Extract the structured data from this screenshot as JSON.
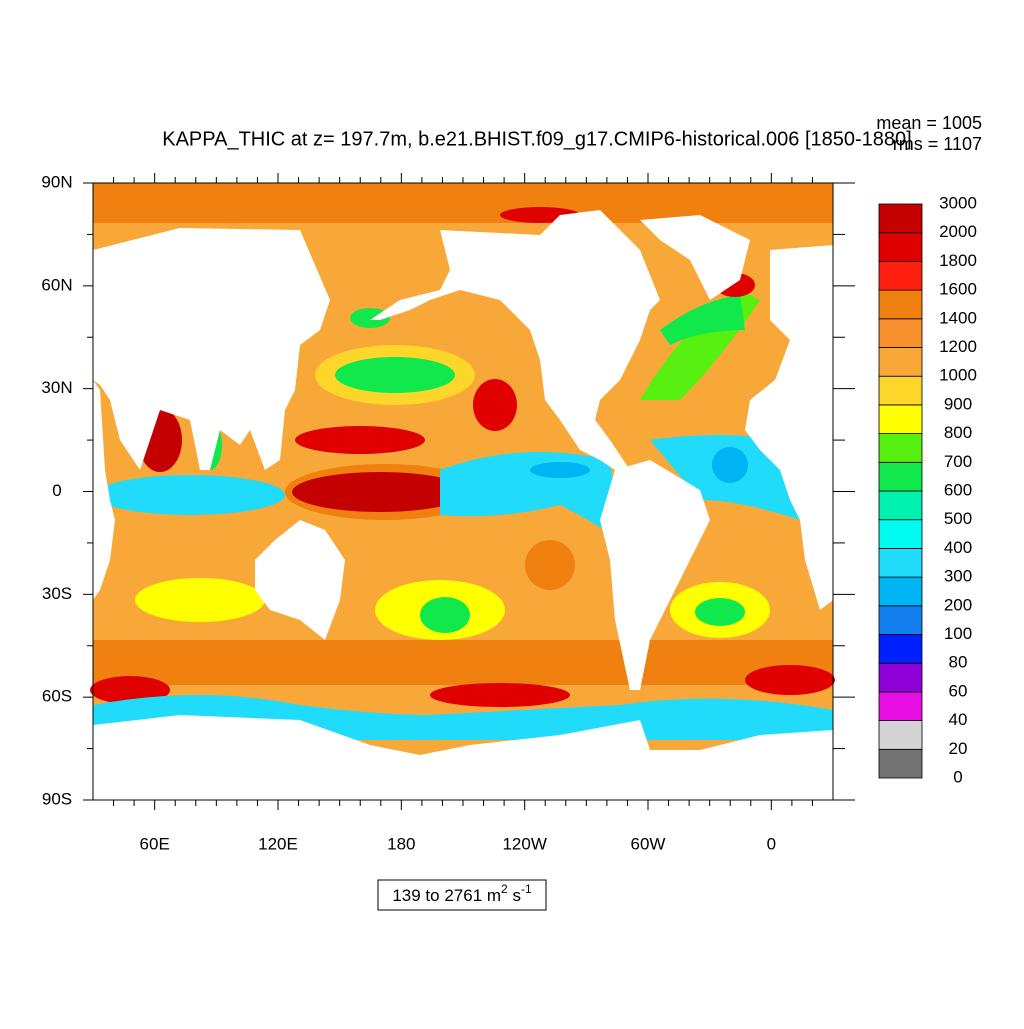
{
  "chart_data": {
    "type": "contour_map",
    "title": "KAPPA_THIC at z= 197.7m, b.e21.BHIST.f09_g17.CMIP6-historical.006 [1850-1880]",
    "stats": [
      "mean = 1005",
      "rms = 1107"
    ],
    "range_label": [
      "139 to 2761 m",
      "2",
      " s",
      "-1"
    ],
    "xlim": [
      30,
      390
    ],
    "ylim": [
      -90,
      90
    ],
    "xticks": [
      {
        "value": 60,
        "label": "60E"
      },
      {
        "value": 120,
        "label": "120E"
      },
      180,
      {
        "value": 240,
        "label": "120W"
      },
      {
        "value": 300,
        "label": "60W"
      },
      {
        "value": 360,
        "label": "0"
      }
    ],
    "yticks": [
      {
        "value": -90,
        "label": "90S"
      },
      {
        "value": -60,
        "label": "60S"
      },
      {
        "value": -30,
        "label": "30S"
      },
      0,
      {
        "value": 30,
        "label": "30N"
      },
      {
        "value": 60,
        "label": "60N"
      },
      {
        "value": 90,
        "label": "90N"
      }
    ],
    "xminorticks": [
      40,
      50,
      70,
      80,
      90,
      100,
      110,
      130,
      140,
      150,
      160,
      170,
      190,
      200,
      210,
      220,
      230,
      250,
      260,
      270,
      280,
      290,
      310,
      320,
      330,
      340,
      350,
      370,
      380
    ],
    "yminorticks": [
      -75,
      -45,
      -15,
      15,
      45,
      75
    ],
    "levels": [
      0,
      20,
      40,
      60,
      80,
      100,
      200,
      300,
      400,
      500,
      600,
      700,
      800,
      900,
      1000,
      1200,
      1400,
      1600,
      1800,
      2000,
      3000
    ],
    "colors": [
      "#737373",
      "#d3d3d3",
      "#e60ee0",
      "#9000d8",
      "#0020ff",
      "#1480f0",
      "#00b4f4",
      "#20dcfa",
      "#00fcf0",
      "#00f0b0",
      "#10e84c",
      "#58f010",
      "#ffff00",
      "#fcd628",
      "#f8a838",
      "#f8902c",
      "#f08010",
      "#ff2010",
      "#e00000",
      "#c40000"
    ]
  }
}
